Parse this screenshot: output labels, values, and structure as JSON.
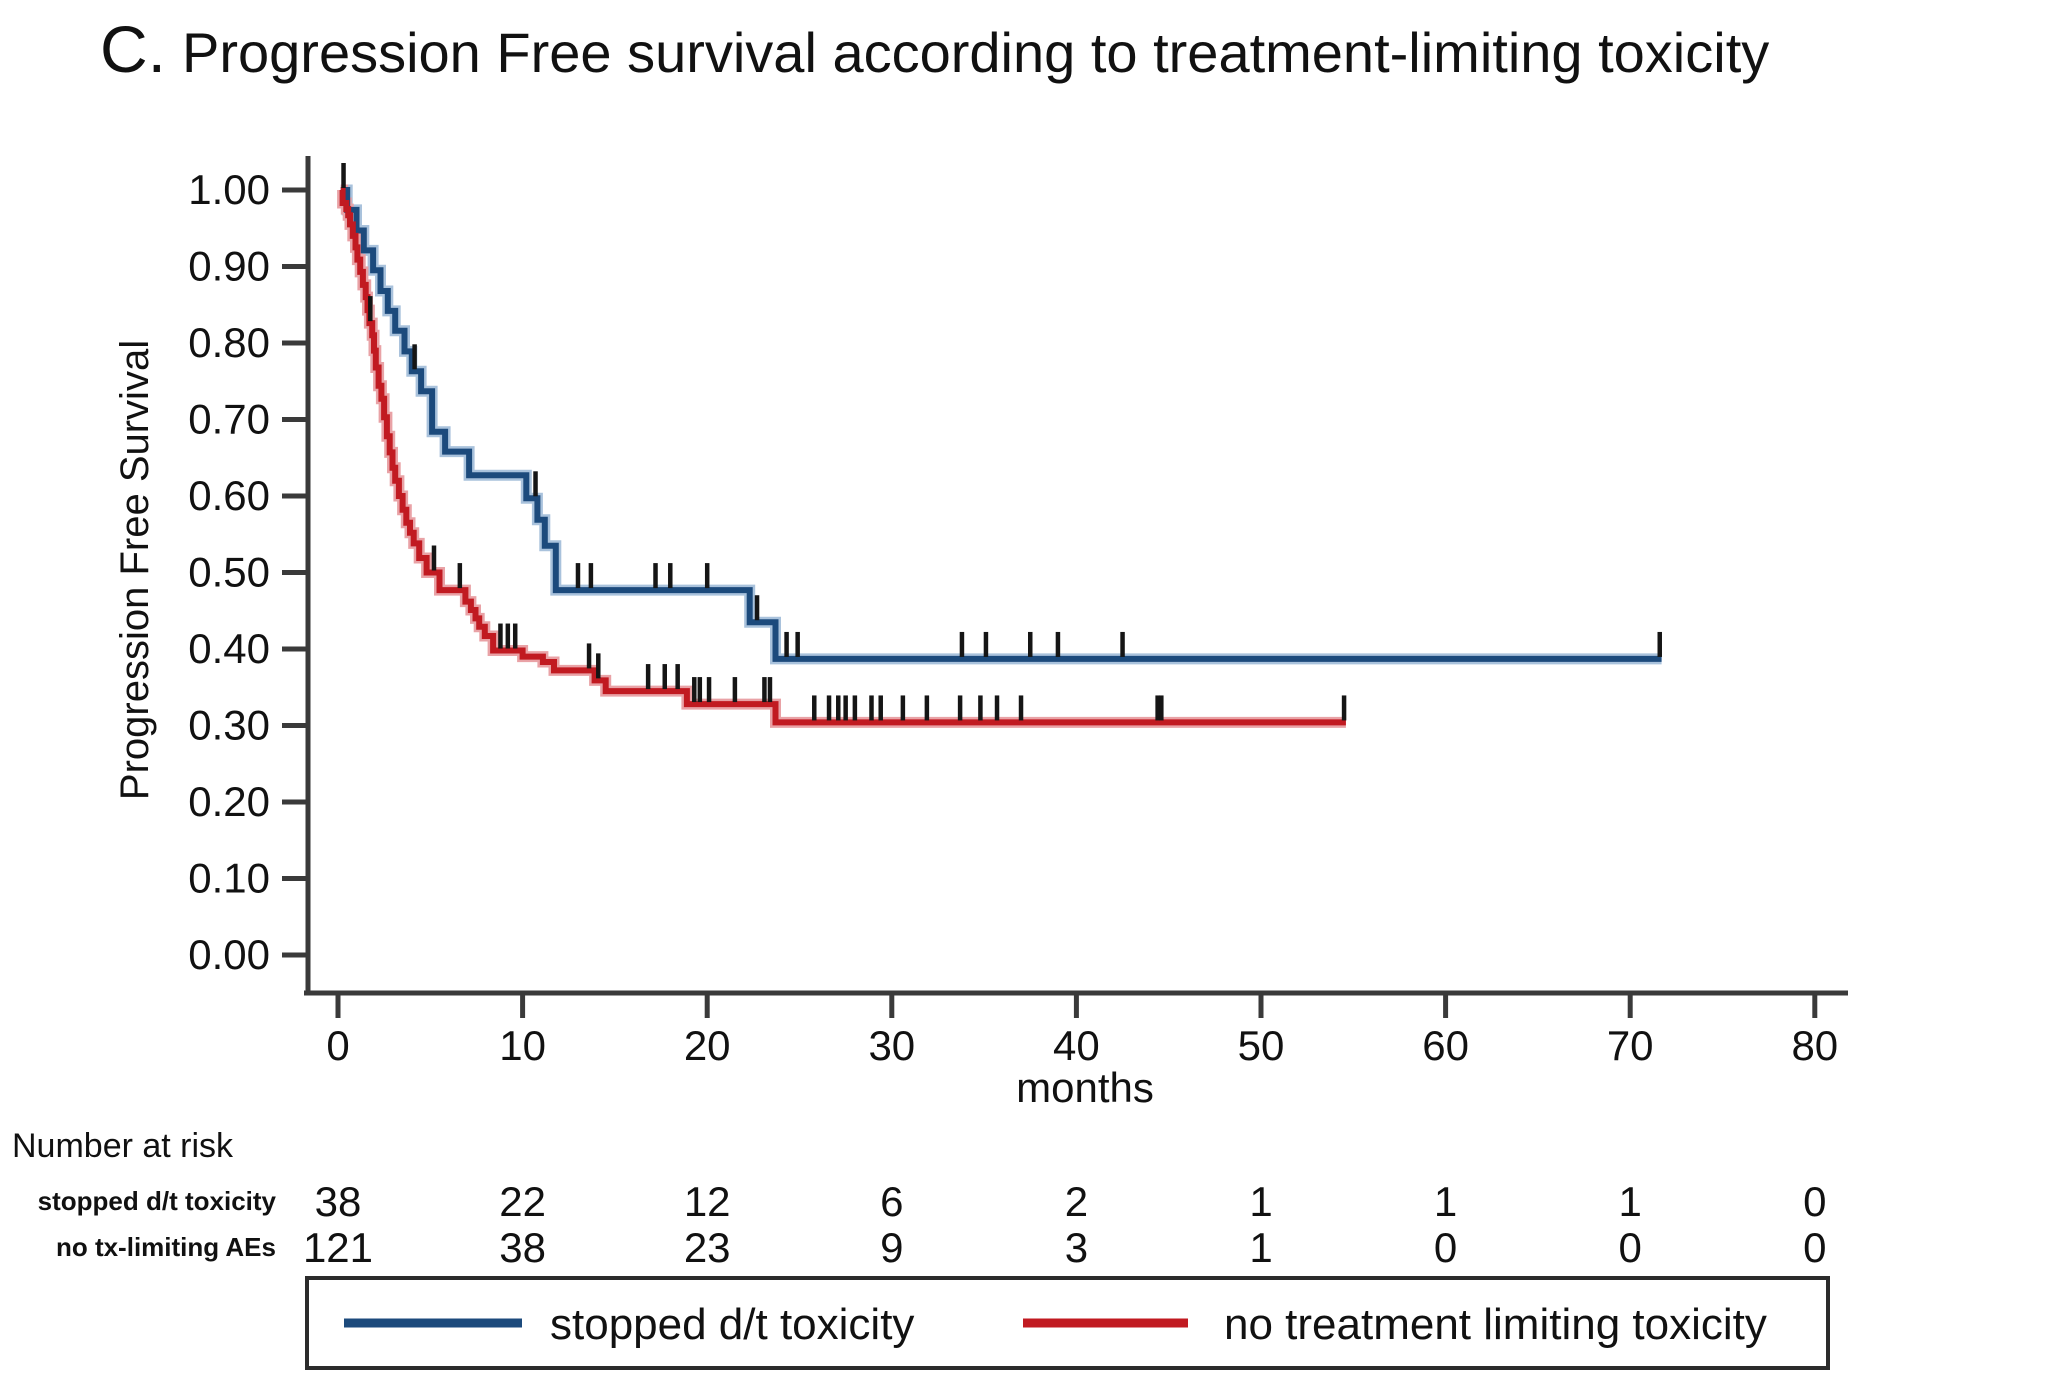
{
  "title": {
    "prefix": "C.",
    "text": "Progression Free  survival according to treatment-limiting toxicity"
  },
  "colors": {
    "blue": "#1c4a7c",
    "blue_halo": "#a9c2dc",
    "red": "#c11a21",
    "red_halo": "#e9a2a6",
    "axis": "#3a3a3a",
    "text": "#111111",
    "censor": "#151515",
    "legend_border": "#2b2b2b"
  },
  "chart_data": {
    "type": "line",
    "subtype": "kaplan-meier-step",
    "title": "C. Progression Free  survival according to treatment-limiting toxicity",
    "xlabel": "months",
    "ylabel": "Progression Free Survival",
    "xlim": [
      0,
      80
    ],
    "ylim": [
      0.0,
      1.0
    ],
    "xticks": [
      0,
      10,
      20,
      30,
      40,
      50,
      60,
      70,
      80
    ],
    "yticks": [
      1.0,
      0.9,
      0.8,
      0.7,
      0.6,
      0.5,
      0.4,
      0.3,
      0.2,
      0.1,
      0.0
    ],
    "ytick_labels": [
      "1.00",
      "0.90",
      "0.80",
      "0.70",
      "0.60",
      "0.50",
      "0.40",
      "0.30",
      "0.20",
      "0.10",
      "0.00"
    ],
    "grid": false,
    "legend_position": "bottom-box",
    "series": [
      {
        "name": "stopped d/t toxicity",
        "color": "#1c4a7c",
        "start": [
          0.15,
          1.0
        ],
        "steps": [
          [
            0.5,
            0.974
          ],
          [
            1.0,
            0.947
          ],
          [
            1.4,
            0.921
          ],
          [
            1.9,
            0.895
          ],
          [
            2.3,
            0.868
          ],
          [
            2.7,
            0.842
          ],
          [
            3.1,
            0.816
          ],
          [
            3.6,
            0.789
          ],
          [
            4.0,
            0.763
          ],
          [
            4.5,
            0.737
          ],
          [
            5.1,
            0.684
          ],
          [
            5.8,
            0.658
          ],
          [
            7.1,
            0.627
          ],
          [
            10.2,
            0.597
          ],
          [
            10.8,
            0.569
          ],
          [
            11.2,
            0.535
          ],
          [
            11.8,
            0.477
          ],
          [
            22.3,
            0.435
          ],
          [
            23.7,
            0.387
          ]
        ],
        "end_time": 71.7,
        "censor_times": [
          0.3,
          4.15,
          10.7,
          13.0,
          13.7,
          17.2,
          18.0,
          20.0,
          22.7,
          24.3,
          24.9,
          33.8,
          35.1,
          37.5,
          39.0,
          42.5,
          71.6
        ]
      },
      {
        "name": "no treatment limiting toxicity",
        "color": "#c11a21",
        "start": [
          0.15,
          1.0
        ],
        "steps": [
          [
            0.25,
            0.983
          ],
          [
            0.45,
            0.975
          ],
          [
            0.55,
            0.967
          ],
          [
            0.65,
            0.955
          ],
          [
            0.8,
            0.94
          ],
          [
            0.95,
            0.925
          ],
          [
            1.05,
            0.909
          ],
          [
            1.2,
            0.893
          ],
          [
            1.35,
            0.876
          ],
          [
            1.5,
            0.86
          ],
          [
            1.6,
            0.843
          ],
          [
            1.7,
            0.826
          ],
          [
            1.85,
            0.81
          ],
          [
            1.95,
            0.79
          ],
          [
            2.05,
            0.768
          ],
          [
            2.2,
            0.744
          ],
          [
            2.35,
            0.727
          ],
          [
            2.5,
            0.703
          ],
          [
            2.65,
            0.678
          ],
          [
            2.8,
            0.657
          ],
          [
            2.95,
            0.637
          ],
          [
            3.1,
            0.62
          ],
          [
            3.3,
            0.6
          ],
          [
            3.5,
            0.582
          ],
          [
            3.7,
            0.565
          ],
          [
            3.9,
            0.552
          ],
          [
            4.1,
            0.538
          ],
          [
            4.4,
            0.519
          ],
          [
            4.8,
            0.5
          ],
          [
            5.5,
            0.477
          ],
          [
            6.9,
            0.462
          ],
          [
            7.2,
            0.451
          ],
          [
            7.45,
            0.44
          ],
          [
            7.65,
            0.429
          ],
          [
            7.95,
            0.417
          ],
          [
            8.4,
            0.398
          ],
          [
            10.0,
            0.39
          ],
          [
            11.1,
            0.383
          ],
          [
            11.7,
            0.372
          ],
          [
            13.9,
            0.359
          ],
          [
            14.5,
            0.345
          ],
          [
            18.9,
            0.328
          ],
          [
            23.7,
            0.304
          ]
        ],
        "end_time": 54.6,
        "censor_times": [
          1.75,
          5.2,
          6.6,
          8.8,
          9.2,
          9.6,
          13.6,
          14.1,
          16.8,
          17.7,
          18.4,
          19.3,
          19.6,
          20.1,
          21.5,
          23.1,
          23.4,
          25.8,
          26.6,
          27.1,
          27.5,
          28.0,
          28.9,
          29.4,
          30.6,
          31.9,
          33.7,
          34.8,
          35.7,
          37.0,
          44.4,
          44.6,
          54.5
        ]
      }
    ],
    "number_at_risk": {
      "header": "Number at risk",
      "times": [
        0,
        10,
        20,
        30,
        40,
        50,
        60,
        70,
        80
      ],
      "rows": [
        {
          "label": "stopped d/t toxicity",
          "counts": [
            38,
            22,
            12,
            6,
            2,
            1,
            1,
            1,
            0
          ]
        },
        {
          "label": "no tx-limiting AEs",
          "counts": [
            121,
            38,
            23,
            9,
            3,
            1,
            0,
            0,
            0
          ]
        }
      ]
    },
    "legend": [
      {
        "label": "stopped d/t toxicity",
        "color": "#1c4a7c"
      },
      {
        "label": "no treatment limiting toxicity",
        "color": "#c11a21"
      }
    ]
  }
}
